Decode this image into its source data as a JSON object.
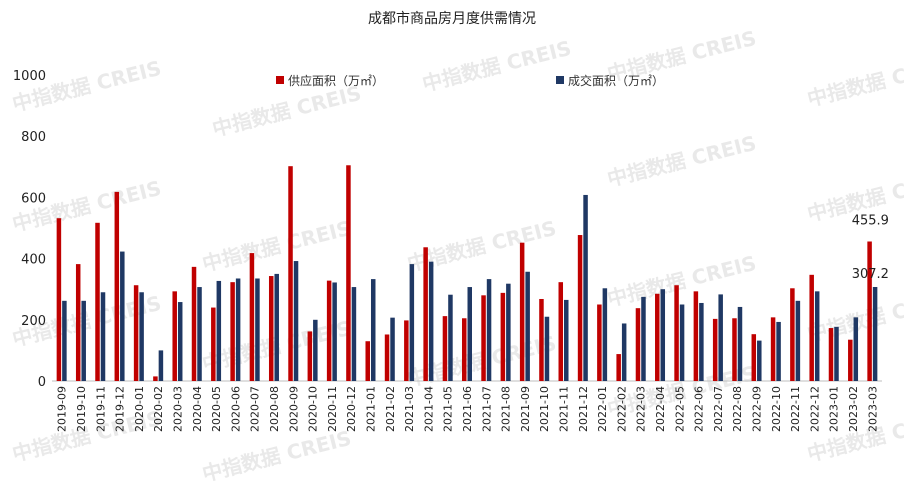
{
  "watermark": "中指数据 CREIS",
  "chart_data": {
    "type": "bar",
    "title": "成都市商品房月度供需情况",
    "xlabel": "",
    "ylabel": "",
    "ylim": [
      0,
      1000
    ],
    "yticks": [
      0,
      200,
      400,
      600,
      800,
      1000
    ],
    "grid": false,
    "legend_position": "top",
    "categories": [
      "2019-09",
      "2019-10",
      "2019-11",
      "2019-12",
      "2020-01",
      "2020-02",
      "2020-03",
      "2020-04",
      "2020-05",
      "2020-06",
      "2020-07",
      "2020-08",
      "2020-09",
      "2020-10",
      "2020-11",
      "2020-12",
      "2021-01",
      "2021-02",
      "2021-03",
      "2021-04",
      "2021-05",
      "2021-06",
      "2021-07",
      "2021-08",
      "2021-09",
      "2021-10",
      "2021-11",
      "2021-12",
      "2022-01",
      "2022-02",
      "2022-03",
      "2022-04",
      "2022-05",
      "2022-06",
      "2022-07",
      "2022-08",
      "2022-09",
      "2022-10",
      "2022-11",
      "2022-12",
      "2023-01",
      "2023-02",
      "2023-03"
    ],
    "series": [
      {
        "name": "供应面积（万㎡）",
        "color": "#c00000",
        "values": [
          532,
          382,
          517,
          618,
          313,
          15,
          293,
          373,
          240,
          323,
          418,
          343,
          702,
          162,
          328,
          705,
          130,
          152,
          198,
          437,
          212,
          205,
          280,
          288,
          452,
          268,
          323,
          477,
          250,
          88,
          238,
          285,
          313,
          293,
          203,
          205,
          153,
          208,
          303,
          347,
          173,
          135,
          455.9
        ]
      },
      {
        "name": "成交面积（万㎡）",
        "color": "#1f3864",
        "values": [
          262,
          262,
          290,
          423,
          290,
          100,
          258,
          307,
          327,
          335,
          335,
          350,
          392,
          200,
          322,
          307,
          333,
          207,
          382,
          390,
          282,
          307,
          333,
          318,
          357,
          210,
          265,
          608,
          303,
          188,
          275,
          300,
          250,
          255,
          283,
          242,
          132,
          193,
          262,
          293,
          177,
          208,
          307.2
        ]
      }
    ],
    "data_labels": [
      {
        "series": 0,
        "category": "2023-03",
        "text": "455.9"
      },
      {
        "series": 1,
        "category": "2023-03",
        "text": "307.2"
      }
    ]
  }
}
